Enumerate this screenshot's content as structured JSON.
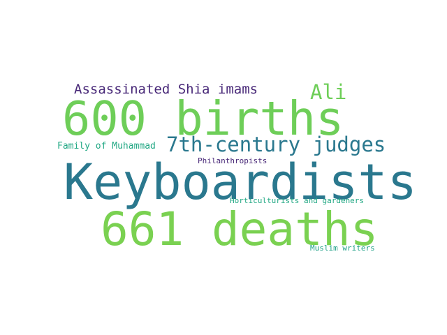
{
  "words": [
    {
      "key": "keyboardists",
      "text": "Keyboardists",
      "color": "#2a788e"
    },
    {
      "key": "births",
      "text": "600 births",
      "color": "#6ece58"
    },
    {
      "key": "deaths",
      "text": "661 deaths",
      "color": "#7ad151"
    },
    {
      "key": "judges",
      "text": "7th-century judges",
      "color": "#2a788e"
    },
    {
      "key": "imams",
      "text": "Assassinated Shia imams",
      "color": "#482878"
    },
    {
      "key": "ali",
      "text": "Ali",
      "color": "#6ece58"
    },
    {
      "key": "family",
      "text": "Family of Muhammad",
      "color": "#22a884"
    },
    {
      "key": "philanthropists",
      "text": "Philanthropists",
      "color": "#482878"
    },
    {
      "key": "horticulturists",
      "text": "Horticulturists and gardeners",
      "color": "#22a884"
    },
    {
      "key": "muslim",
      "text": "Muslim writers",
      "color": "#1fa187"
    }
  ]
}
